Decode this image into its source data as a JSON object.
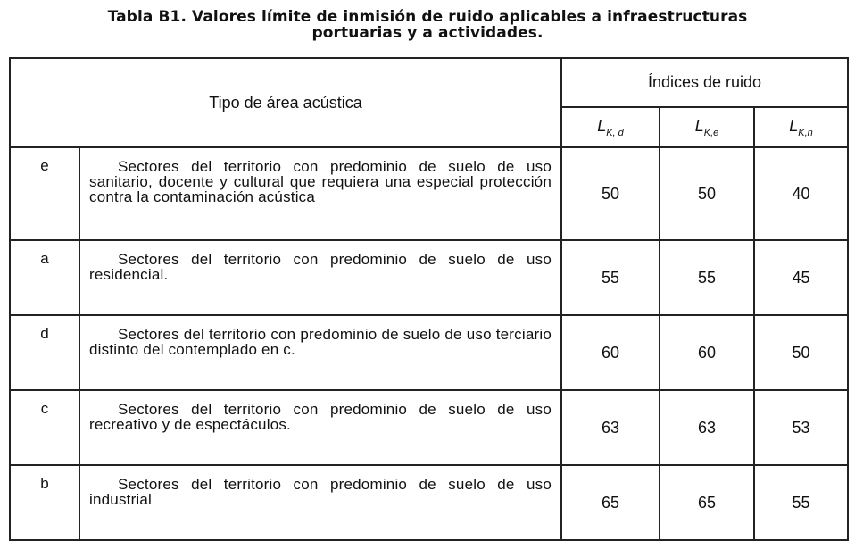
{
  "title": {
    "line1": "Tabla B1. Valores límite de inmisión de ruido aplicables a  infraestructuras",
    "line2": "portuarias y a actividades."
  },
  "header": {
    "area_label": "Tipo de área acústica",
    "indices_label": "Índices de ruido",
    "indices": [
      {
        "base": "L",
        "sub": "K, d"
      },
      {
        "base": "L",
        "sub": "K,e"
      },
      {
        "base": "L",
        "sub": "K,n"
      }
    ]
  },
  "rows": [
    {
      "code": "e",
      "description": "Sectores del territorio con predominio de suelo de uso sanitario, docente y cultural que requiera una especial protección contra la contaminación acústica",
      "values": [
        "50",
        "50",
        "40"
      ]
    },
    {
      "code": "a",
      "description": "Sectores del territorio con predominio de suelo de uso  residencial.",
      "values": [
        "55",
        "55",
        "45"
      ]
    },
    {
      "code": "d",
      "description": "Sectores del territorio con predominio de suelo de uso terciario distinto del contemplado en c.",
      "values": [
        "60",
        "60",
        "50"
      ]
    },
    {
      "code": "c",
      "description": "Sectores del territorio con predominio de suelo de uso  recreativo y de espectáculos.",
      "values": [
        "63",
        "63",
        "53"
      ]
    },
    {
      "code": "b",
      "description": "Sectores del territorio con predominio de suelo de uso  industrial",
      "values": [
        "65",
        "65",
        "55"
      ]
    }
  ]
}
